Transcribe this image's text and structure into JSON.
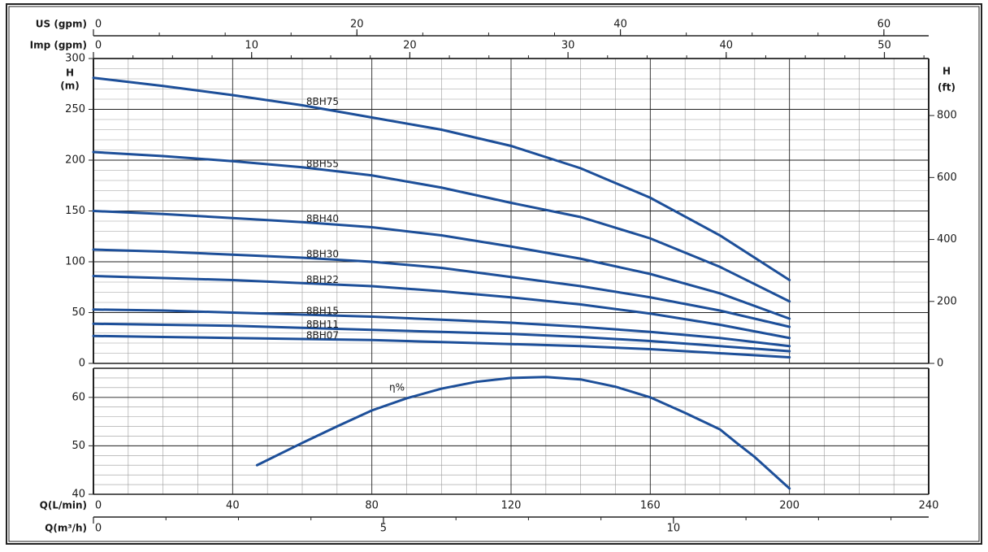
{
  "chart_data": [
    {
      "type": "line",
      "y_label": "H",
      "y_unit": "(m)",
      "y2_label": "H",
      "y2_unit": "(ft)",
      "x": [
        0,
        20,
        40,
        60,
        80,
        100,
        120,
        140,
        160,
        180,
        200
      ],
      "xlim": [
        0,
        240
      ],
      "xticks": [
        0,
        40,
        80,
        120,
        160,
        200,
        240
      ],
      "ylim": [
        0,
        300
      ],
      "yticks": [
        0,
        50,
        100,
        150,
        200,
        250,
        300
      ],
      "y2lim": [
        0,
        984
      ],
      "y2ticks": [
        0,
        200,
        400,
        600,
        800
      ],
      "top_axes": [
        {
          "label": "US (gpm)",
          "xlim": [
            0,
            63.4
          ],
          "xticks": [
            0,
            20,
            40,
            60
          ]
        },
        {
          "label": "Imp (gpm)",
          "xlim": [
            0,
            52.8
          ],
          "xticks": [
            0,
            10,
            20,
            30,
            40,
            50
          ]
        }
      ],
      "grid": true,
      "series": [
        {
          "name": "8BH75",
          "color": "#1d4f99",
          "values": [
            281,
            273,
            264,
            254,
            242,
            230,
            214,
            192,
            163,
            126,
            82
          ]
        },
        {
          "name": "8BH55",
          "color": "#1d4f99",
          "values": [
            208,
            204,
            199,
            193,
            185,
            173,
            158,
            144,
            123,
            95,
            61
          ]
        },
        {
          "name": "8BH40",
          "color": "#1d4f99",
          "values": [
            150,
            147,
            143,
            139,
            134,
            126,
            115,
            103,
            88,
            69,
            44
          ]
        },
        {
          "name": "8BH30",
          "color": "#1d4f99",
          "values": [
            112,
            110,
            107,
            104,
            100,
            94,
            85,
            76,
            65,
            52,
            36
          ]
        },
        {
          "name": "8BH22",
          "color": "#1d4f99",
          "values": [
            86,
            84,
            82,
            79,
            76,
            71,
            65,
            58,
            49,
            38,
            25
          ]
        },
        {
          "name": "8BH15",
          "color": "#1d4f99",
          "values": [
            53,
            52,
            50,
            48,
            46,
            43,
            40,
            36,
            31,
            25,
            17
          ]
        },
        {
          "name": "8BH11",
          "color": "#1d4f99",
          "values": [
            39,
            38,
            37,
            35,
            33,
            31,
            29,
            26,
            22,
            17,
            12
          ]
        },
        {
          "name": "8BH07",
          "color": "#1d4f99",
          "values": [
            27,
            26,
            25,
            24,
            23,
            21,
            19,
            17,
            14,
            10,
            6
          ]
        }
      ]
    },
    {
      "type": "line",
      "x_label": "Q(L/min)",
      "x": [
        47,
        60,
        70,
        80,
        90,
        100,
        110,
        120,
        130,
        140,
        150,
        160,
        170,
        180,
        185,
        190,
        200
      ],
      "xlim": [
        0,
        240
      ],
      "xticks": [
        0,
        40,
        80,
        120,
        160,
        200,
        240
      ],
      "ylim": [
        40,
        66
      ],
      "yticks": [
        40,
        50,
        60
      ],
      "bottom_axis": {
        "label": "Q(m³/h)",
        "xlim": [
          0,
          14.4
        ],
        "xticks": [
          0,
          5,
          10
        ]
      },
      "grid": true,
      "series": [
        {
          "name": "η%",
          "color": "#1d4f99",
          "values": [
            46,
            50.6,
            54,
            57.3,
            59.8,
            61.8,
            63.2,
            64,
            64.2,
            63.7,
            62.2,
            60,
            56.8,
            53.4,
            50.5,
            47.7,
            41.2
          ]
        }
      ]
    }
  ]
}
